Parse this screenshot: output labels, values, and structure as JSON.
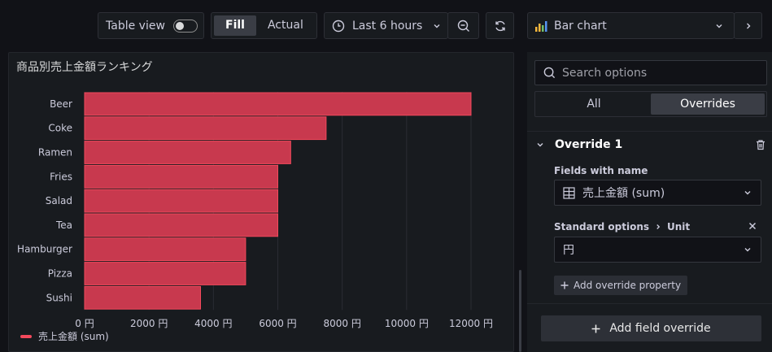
{
  "toolbar": {
    "table_view_label": "Table view",
    "fill_label": "Fill",
    "actual_label": "Actual",
    "time_range": "Last 6 hours",
    "visualization": "Bar chart"
  },
  "panel": {
    "title": "商品別売上金額ランキング",
    "legend_label": "売上金額 (sum)"
  },
  "chart_data": {
    "type": "bar",
    "orientation": "horizontal",
    "title": "商品別売上金額ランキング",
    "categories": [
      "Beer",
      "Coke",
      "Ramen",
      "Fries",
      "Salad",
      "Tea",
      "Hamburger",
      "Pizza",
      "Sushi"
    ],
    "series": [
      {
        "name": "売上金額 (sum)",
        "values": [
          12000,
          7500,
          6400,
          6000,
          6000,
          6000,
          5000,
          5000,
          3600
        ]
      }
    ],
    "xlim": [
      0,
      12000
    ],
    "x_ticks": [
      0,
      2000,
      4000,
      6000,
      8000,
      10000,
      12000
    ],
    "x_tick_labels": [
      "0 円",
      "2000 円",
      "4000 円",
      "6000 円",
      "8000 円",
      "10000 円",
      "12000 円"
    ],
    "grid": true,
    "legend_position": "bottom-left",
    "bar_color": "#c8394e",
    "bar_border_color": "#f2495c"
  },
  "options": {
    "search_placeholder": "Search options",
    "tab_all": "All",
    "tab_overrides": "Overrides",
    "override_title": "Override 1",
    "fields_label": "Fields with name",
    "field_value": "売上金額 (sum)",
    "standard_options_label": "Standard options",
    "unit_label": "Unit",
    "unit_value": "円",
    "add_property_label": "Add override property",
    "add_field_override_label": "Add field override"
  },
  "colors": {
    "background": "#111217",
    "panel": "#181b1f",
    "border": "#2d2f36",
    "text": "#ccccdc"
  }
}
